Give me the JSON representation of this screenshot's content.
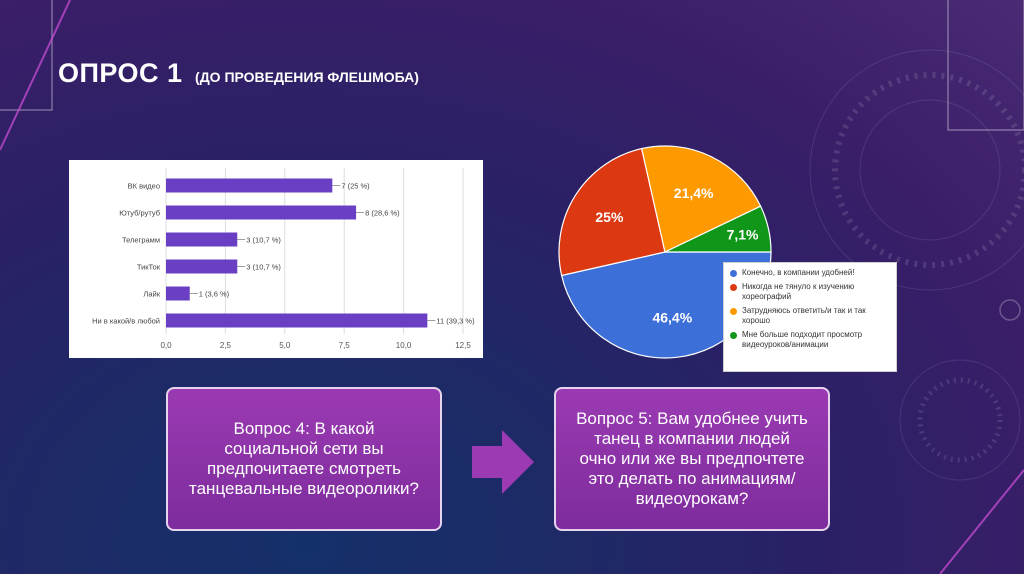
{
  "slide": {
    "title": "ОПРОС 1",
    "subtitle": "(ДО ПРОВЕДЕНИЯ ФЛЕШМОБА)",
    "question_4": "Вопрос 4: В какой социальной сети вы предпочитаете смотреть танцевальные видеоролики?",
    "question_5": "Вопрос 5: Вам удобнее учить танец в компании людей очно или же вы предпочтете это делать по анимациям/видеоурокам?"
  },
  "colors": {
    "bar": "#6a3fc4",
    "q1_blue": "#3d6fd9",
    "q2_red": "#dc3912",
    "q3_orange": "#ff9900",
    "q4_green": "#109618"
  },
  "chart_data": [
    {
      "type": "bar",
      "orientation": "horizontal",
      "categories": [
        "ВК видео",
        "Ютуб/рутуб",
        "Телеграмм",
        "ТикТок",
        "Лайк",
        "Ни в какой/в любой"
      ],
      "values": [
        7,
        8,
        3,
        3,
        1,
        11
      ],
      "data_labels": [
        "7 (25 %)",
        "8 (28,6 %)",
        "3 (10,7 %)",
        "3 (10,7 %)",
        "1 (3,6 %)",
        "11 (39,3 %)"
      ],
      "xlim": [
        0,
        12.5
      ],
      "xticks": [
        "0,0",
        "2,5",
        "5,0",
        "7,5",
        "10,0",
        "12,5"
      ],
      "grid": true
    },
    {
      "type": "pie",
      "labels": [
        "Конечно, в компании удобней!",
        "Никогда не тянуло к изучению хореографий",
        "Затрудняюсь ответить/и так и так хорошо",
        "Мне больше подходит просмотр видеоуроков/анимации"
      ],
      "values": [
        46.4,
        25,
        21.4,
        7.1
      ],
      "data_labels": [
        "46,4%",
        "25%",
        "21,4%",
        "7,1%"
      ],
      "legend_position": "bottom-right"
    }
  ]
}
